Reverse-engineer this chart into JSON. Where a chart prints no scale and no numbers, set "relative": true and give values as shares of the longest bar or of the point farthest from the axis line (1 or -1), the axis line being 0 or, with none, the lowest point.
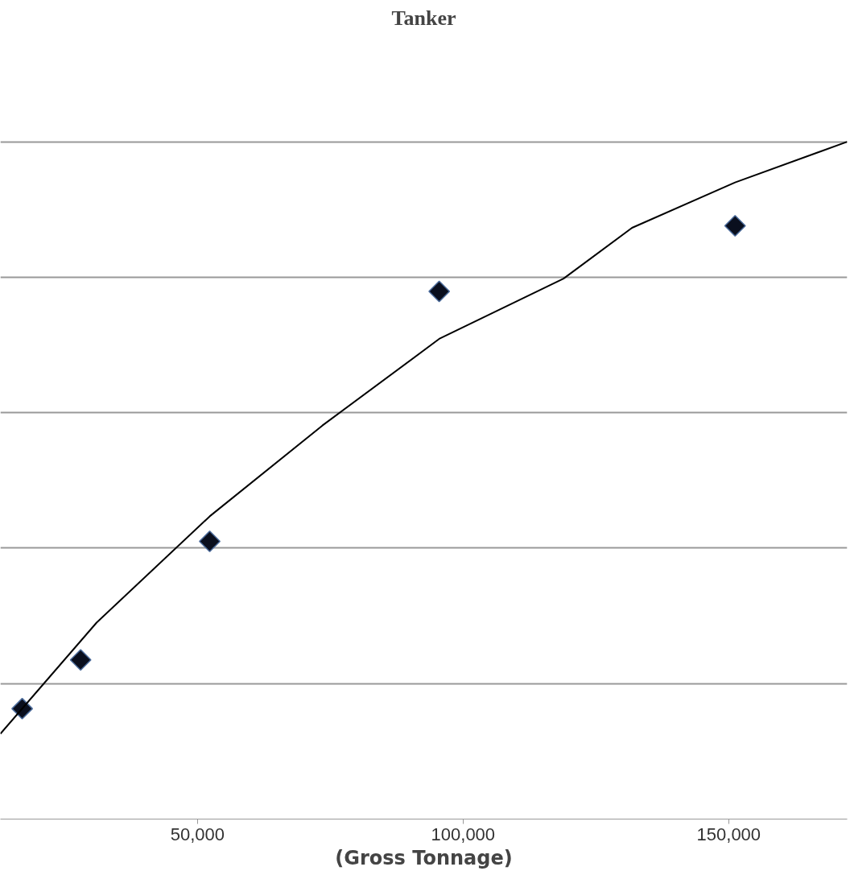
{
  "chart_data": {
    "type": "scatter",
    "title": "Tanker",
    "xlabel": "(Gross Tonnage)",
    "relative": true,
    "grid": "y",
    "marker": "diamond",
    "xlim": [
      12900,
      172300
    ],
    "xticks": [
      {
        "value": 50000,
        "label": "50,000"
      },
      {
        "value": 100000,
        "label": "100,000"
      },
      {
        "value": 150000,
        "label": "150,000"
      }
    ],
    "series": [
      {
        "color": "#0a0f1e",
        "x": [
          17000,
          28000,
          52300,
          95500,
          151200
        ],
        "values": [
          0.163,
          0.235,
          0.41,
          0.779,
          0.876
        ]
      },
      {
        "type": "line",
        "color": "#000000",
        "line_style": "solid",
        "marker": "none",
        "x": [
          12900,
          31000,
          52300,
          73500,
          95500,
          118900,
          131800,
          151200,
          172300
        ],
        "values": [
          0.126,
          0.29,
          0.447,
          0.581,
          0.709,
          0.798,
          0.873,
          0.94,
          1
        ]
      }
    ]
  }
}
